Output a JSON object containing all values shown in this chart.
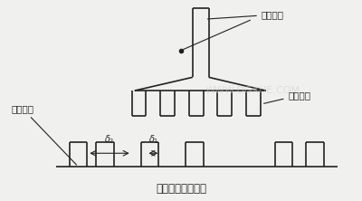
{
  "title": "微调定子小齿结构",
  "label_stator_main": "定子主极",
  "label_rotor_tooth": "转子小齿",
  "label_stator_tooth": "定子小齿",
  "label_delta2": "δ₂",
  "label_delta1": "δ₁",
  "bg_color": "#f0f0ee",
  "line_color": "#222222",
  "watermark": "WWW.DGXUE.COM",
  "fig_width": 4.0,
  "fig_height": 2.22
}
